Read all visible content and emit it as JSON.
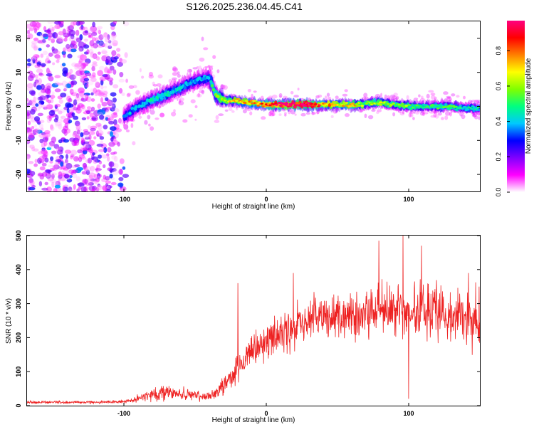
{
  "title": "S126.2025.236.04.45.C41",
  "chart_data": [
    {
      "type": "heatmap",
      "name": "spectrogram",
      "xlabel": "Height of straight line (km)",
      "ylabel": "Frequency (Hz)",
      "xlim": [
        -168,
        150
      ],
      "ylim": [
        -25,
        25
      ],
      "xticks": [
        -100,
        0,
        100
      ],
      "xtick_labels": [
        "-100",
        "0",
        "100"
      ],
      "yticks": [
        -20,
        -10,
        0,
        10,
        20
      ],
      "ytick_labels": [
        "-20",
        "-10",
        "0",
        "10",
        "20"
      ],
      "colorbar": {
        "label": "Normalized spectral amplitude",
        "range": [
          0,
          0.97
        ],
        "ticks": [
          0.0,
          0.2,
          0.4,
          0.6,
          0.8
        ],
        "tick_labels": [
          "0.0",
          "0.2",
          "0.4",
          "0.6",
          "0.8"
        ],
        "colormap": [
          "#ffffff",
          "#ff00ff",
          "#8000ff",
          "#0000ff",
          "#00c8ff",
          "#00ff80",
          "#80ff00",
          "#ffff00",
          "#ff8000",
          "#ff0000",
          "#ff0080"
        ]
      },
      "ridge": {
        "x": [
          -100,
          -95,
          -90,
          -85,
          -80,
          -75,
          -70,
          -65,
          -60,
          -55,
          -50,
          -45,
          -40,
          -35,
          -30,
          -20,
          -10,
          0,
          10,
          20,
          30,
          40,
          50,
          60,
          70,
          80,
          90,
          100,
          110,
          120,
          130,
          140,
          150
        ],
        "freq": [
          -3,
          -1.5,
          0,
          1,
          2,
          2.5,
          3.5,
          4.5,
          5.5,
          6.5,
          7.5,
          8,
          8.5,
          3,
          2,
          1.5,
          1,
          0.5,
          0.5,
          0.5,
          0.5,
          0.5,
          0.5,
          0.5,
          0.8,
          1.2,
          0.5,
          0,
          0,
          0,
          0,
          -0.5,
          -0.5
        ],
        "amplitude": [
          0.25,
          0.3,
          0.3,
          0.3,
          0.35,
          0.35,
          0.35,
          0.3,
          0.35,
          0.3,
          0.3,
          0.3,
          0.3,
          0.45,
          0.5,
          0.55,
          0.6,
          0.65,
          0.8,
          0.85,
          0.85,
          0.6,
          0.55,
          0.6,
          0.45,
          0.5,
          0.45,
          0.45,
          0.4,
          0.4,
          0.4,
          0.35,
          0.35
        ]
      }
    },
    {
      "type": "line",
      "name": "snr",
      "color": "#ee2222",
      "xlabel": "Height of straight line (km)",
      "ylabel": "SNR (10 * v/v)",
      "xlim": [
        -168,
        150
      ],
      "ylim": [
        0,
        500
      ],
      "xticks": [
        -100,
        0,
        100
      ],
      "xtick_labels": [
        "-100",
        "0",
        "100"
      ],
      "yticks": [
        0,
        100,
        200,
        300,
        400,
        500
      ],
      "ytick_labels": [
        "0",
        "100",
        "200",
        "300",
        "400",
        "500"
      ],
      "envelope": {
        "x": [
          -168,
          -120,
          -100,
          -95,
          -90,
          -85,
          -80,
          -75,
          -70,
          -65,
          -60,
          -55,
          -50,
          -45,
          -40,
          -35,
          -30,
          -25,
          -20,
          -15,
          -10,
          -5,
          0,
          5,
          10,
          15,
          20,
          30,
          40,
          50,
          60,
          70,
          80,
          90,
          100,
          110,
          120,
          130,
          140,
          150
        ],
        "mean": [
          10,
          10,
          12,
          15,
          20,
          30,
          35,
          35,
          40,
          35,
          35,
          30,
          30,
          25,
          30,
          40,
          60,
          90,
          110,
          130,
          150,
          170,
          190,
          200,
          210,
          220,
          230,
          250,
          260,
          260,
          260,
          270,
          280,
          280,
          270,
          280,
          280,
          270,
          260,
          260
        ],
        "spread": [
          5,
          5,
          6,
          8,
          12,
          20,
          25,
          25,
          25,
          25,
          20,
          20,
          20,
          18,
          20,
          25,
          35,
          45,
          60,
          60,
          65,
          70,
          70,
          70,
          75,
          75,
          80,
          80,
          85,
          90,
          95,
          100,
          110,
          110,
          110,
          100,
          100,
          95,
          90,
          90
        ]
      },
      "spikes": [
        {
          "x": -20,
          "y": 360
        },
        {
          "x": 19,
          "y": 390
        },
        {
          "x": 79,
          "y": 485
        },
        {
          "x": 96,
          "y": 500
        },
        {
          "x": 100,
          "y": 20
        },
        {
          "x": 109,
          "y": 470
        },
        {
          "x": 142,
          "y": 390
        }
      ]
    }
  ]
}
